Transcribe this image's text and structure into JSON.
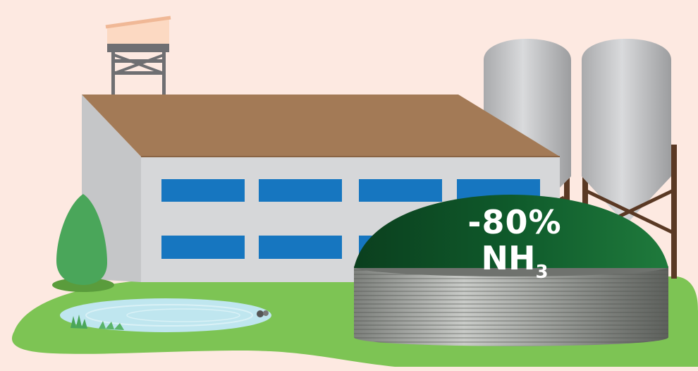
{
  "badge": {
    "reduction": "-80%",
    "compound_main": "NH",
    "compound_sub": "3"
  },
  "colors": {
    "background": "#fde9e1",
    "roof": "#a37a56",
    "wall": "#d6d7d9",
    "window": "#1676c0",
    "grass": "#7dc454",
    "dome": "#0f5a2a",
    "silo": "#c2c3c5",
    "pond": "#bfe6ef",
    "tree": "#4aa65a"
  }
}
